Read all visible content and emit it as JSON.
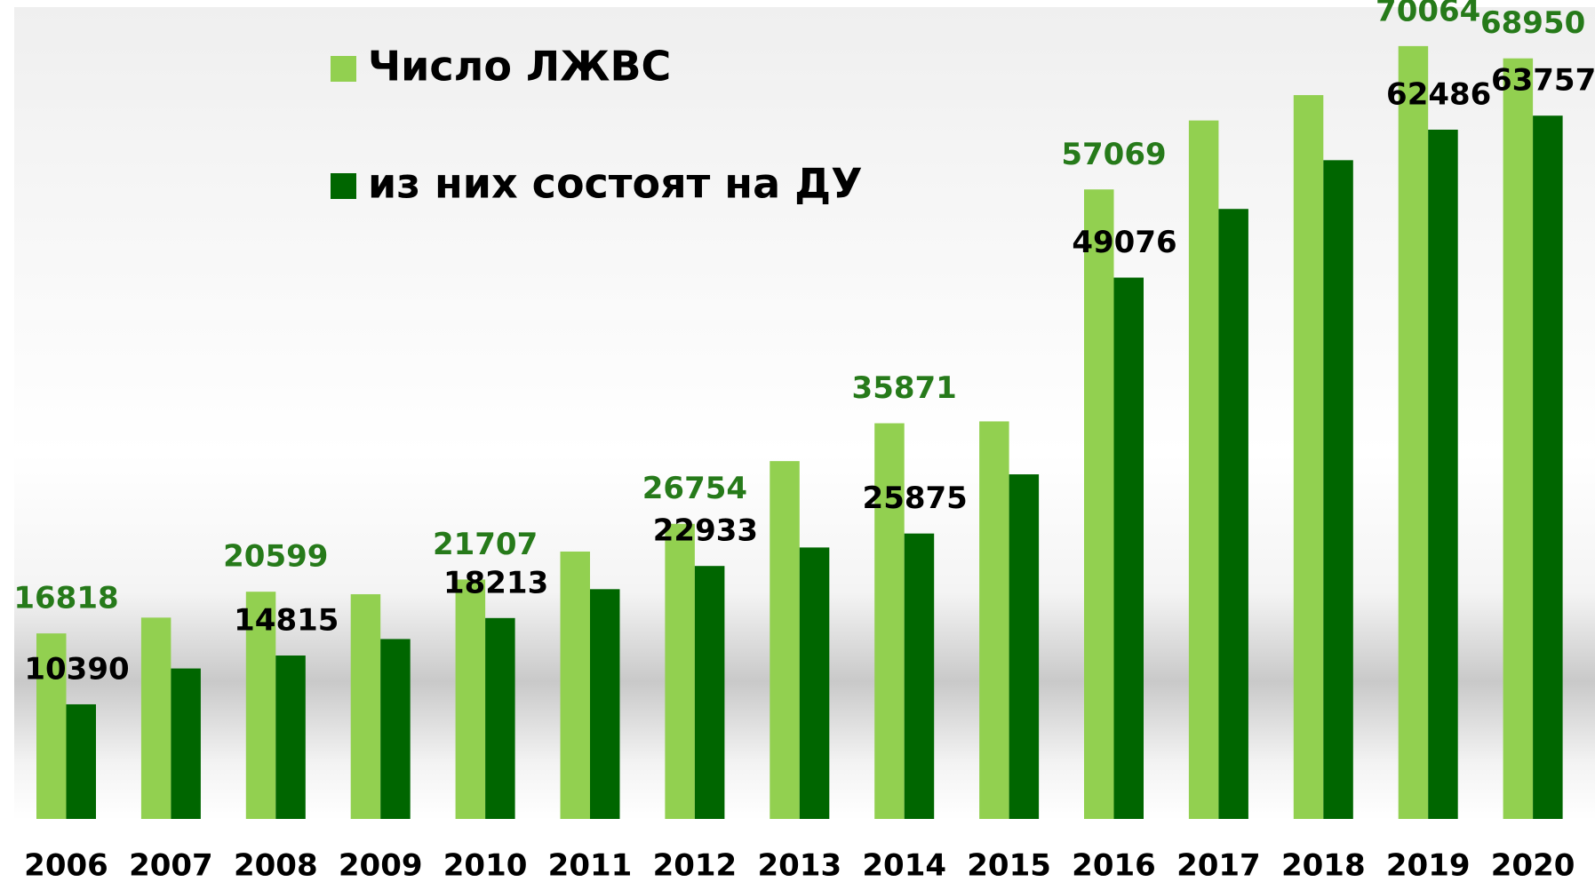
{
  "chart_data": {
    "type": "bar",
    "categories": [
      "2006",
      "2007",
      "2008",
      "2009",
      "2010",
      "2011",
      "2012",
      "2013",
      "2014",
      "2015",
      "2016",
      "2017",
      "2018",
      "2019",
      "2020"
    ],
    "series": [
      {
        "name": "Число ЛЖВС",
        "color": "#92d050",
        "label_color": "#267a1a",
        "values": [
          16818,
          18250,
          20599,
          20370,
          21707,
          24240,
          26754,
          32440,
          35871,
          36040,
          57069,
          63320,
          65620,
          70064,
          68950
        ],
        "value_labels": [
          "16818",
          null,
          "20599",
          null,
          "21707",
          null,
          "26754",
          null,
          "35871",
          null,
          "57069",
          null,
          null,
          "70064",
          "68950"
        ]
      },
      {
        "name": "из них состоят на ДУ",
        "color": "#006600",
        "label_color": "#000000",
        "values": [
          10390,
          13640,
          14815,
          16310,
          18213,
          20830,
          22933,
          24610,
          25875,
          31240,
          49076,
          55300,
          59720,
          62486,
          63757
        ],
        "value_labels": [
          "10390",
          null,
          "14815",
          null,
          "18213",
          null,
          "22933",
          null,
          "25875",
          null,
          "49076",
          null,
          null,
          "62486",
          "63757"
        ]
      }
    ],
    "ylim": [
      0,
      74000
    ],
    "grid": false,
    "legend": "top-left"
  }
}
